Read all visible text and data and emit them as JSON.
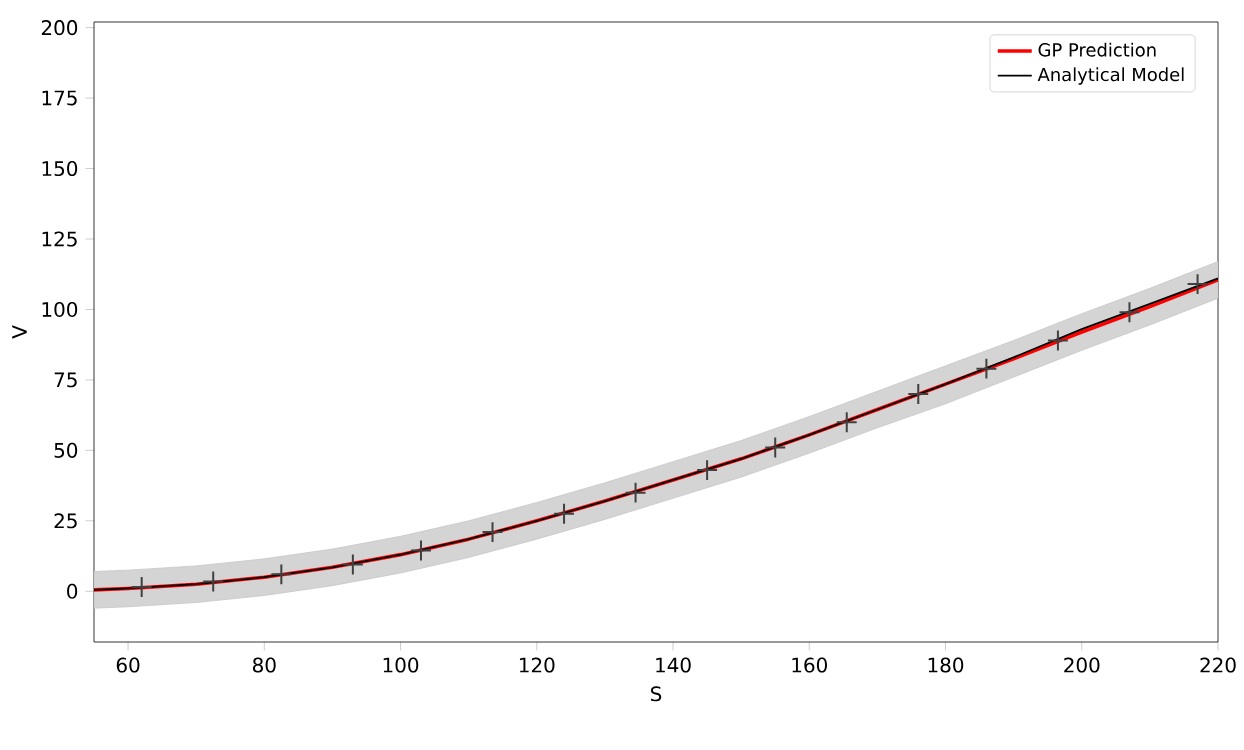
{
  "chart_data": {
    "type": "line",
    "xlabel": "S",
    "ylabel": "V",
    "xlim": [
      55,
      220
    ],
    "ylim": [
      -18,
      202
    ],
    "xticks": [
      60,
      80,
      100,
      120,
      140,
      160,
      180,
      200,
      220
    ],
    "yticks": [
      0,
      25,
      50,
      75,
      100,
      125,
      150,
      175,
      200
    ],
    "legend": "top right",
    "grid": false,
    "series": [
      {
        "name": "GP Prediction",
        "color": "#ff0000",
        "x": [
          55,
          60,
          70,
          80,
          90,
          100,
          110,
          120,
          130,
          140,
          150,
          160,
          170,
          180,
          190,
          200,
          210,
          220
        ],
        "values": [
          0.5,
          1,
          2.5,
          5,
          8.5,
          13,
          18.5,
          25,
          32,
          39.5,
          47,
          55.5,
          64.5,
          73.5,
          82.5,
          92,
          101,
          110.5
        ],
        "lower": [
          -6,
          -5.5,
          -4,
          -1.5,
          2,
          6.5,
          12,
          18.5,
          25.5,
          33,
          40.5,
          49,
          58,
          66.5,
          76,
          85.5,
          94.5,
          104
        ],
        "upper": [
          7,
          7.5,
          9,
          11.5,
          15,
          19.5,
          25,
          31.5,
          38.5,
          46,
          53.5,
          62,
          71,
          80,
          89,
          98.5,
          107.5,
          117
        ]
      },
      {
        "name": "Analytical Model",
        "color": "#000000",
        "x": [
          55,
          60,
          70,
          80,
          90,
          100,
          110,
          120,
          130,
          140,
          150,
          160,
          170,
          180,
          190,
          200,
          210,
          220
        ],
        "values": [
          0.5,
          1,
          2.5,
          5,
          8.5,
          13,
          18.5,
          25,
          32,
          39.5,
          47,
          55.5,
          64.5,
          73.5,
          83,
          93,
          102,
          111
        ]
      },
      {
        "type": "scatter",
        "marker": "cross",
        "color": "#404040",
        "x": [
          62,
          72.5,
          82.5,
          93,
          103,
          113.5,
          124,
          134.5,
          145,
          155,
          165.5,
          176,
          186,
          196.5,
          207,
          217
        ],
        "values": [
          1.5,
          3.5,
          6,
          9.5,
          14.5,
          21,
          27.5,
          35,
          43,
          51,
          60,
          70,
          79,
          89,
          99,
          109
        ]
      }
    ]
  }
}
